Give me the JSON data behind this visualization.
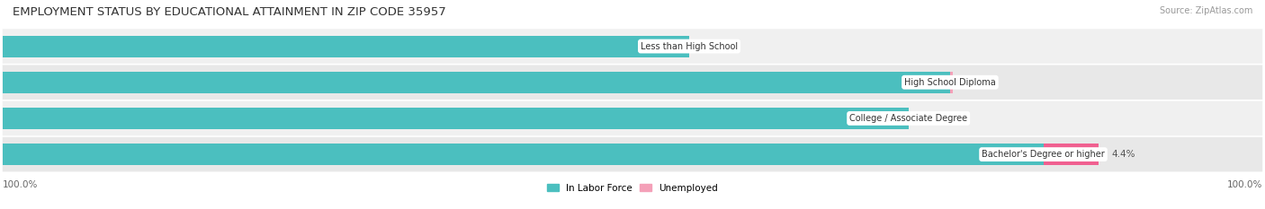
{
  "title": "EMPLOYMENT STATUS BY EDUCATIONAL ATTAINMENT IN ZIP CODE 35957",
  "source": "Source: ZipAtlas.com",
  "categories": [
    "Less than High School",
    "High School Diploma",
    "College / Associate Degree",
    "Bachelor's Degree or higher"
  ],
  "labor_force": [
    54.5,
    75.2,
    71.9,
    82.6
  ],
  "unemployed": [
    0.0,
    0.2,
    0.0,
    4.4
  ],
  "labor_force_color": "#4bbfbf",
  "unemployed_color_low": "#f4a0b8",
  "unemployed_color_high": "#f06090",
  "title_fontsize": 9.5,
  "label_fontsize": 7.5,
  "tick_fontsize": 7.5,
  "source_fontsize": 7.0,
  "x_left_label": "100.0%",
  "x_right_label": "100.0%",
  "legend_labor": "In Labor Force",
  "legend_unemployed": "Unemployed",
  "bar_height": 0.6,
  "xlim": 100,
  "row_bg_even": "#f0f0f0",
  "row_bg_odd": "#e8e8e8"
}
